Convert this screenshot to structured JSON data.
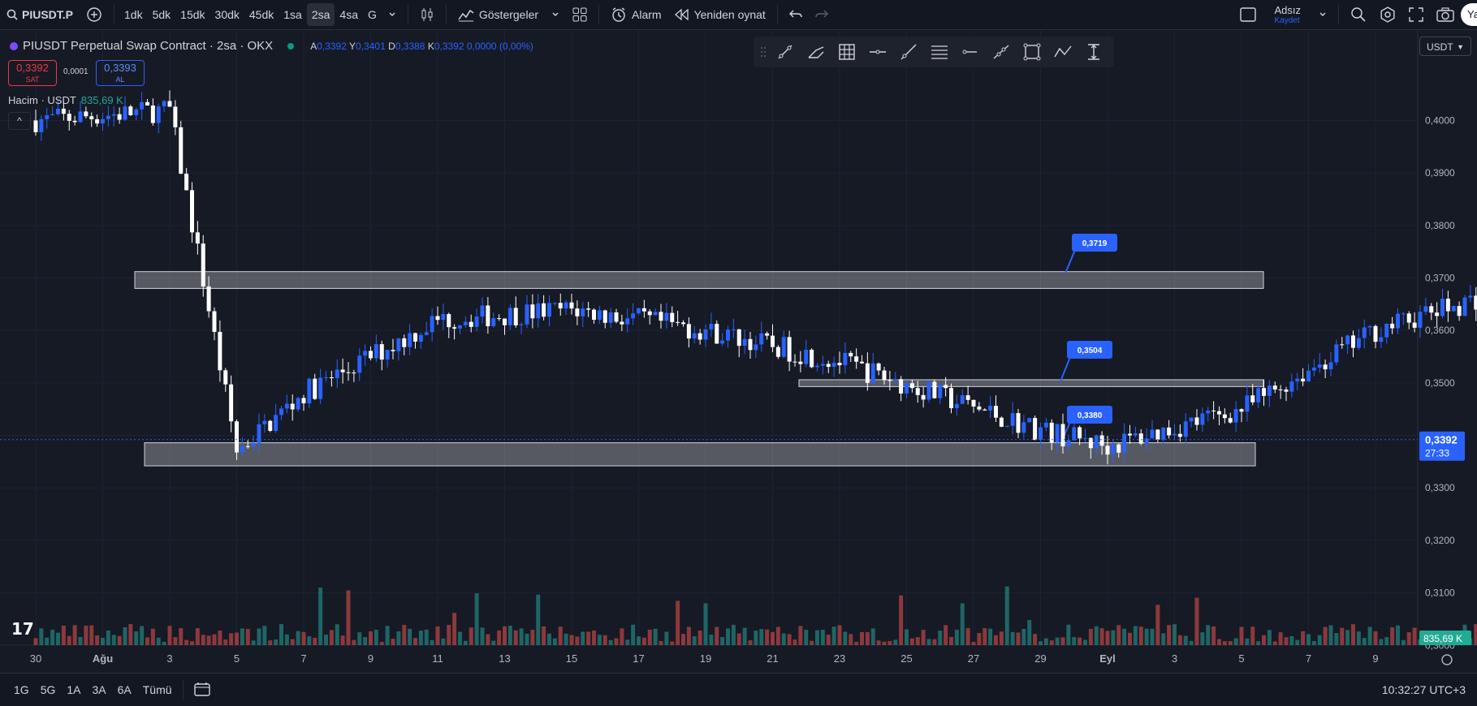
{
  "topbar": {
    "symbol": "PIUSDT.P",
    "intervals": [
      "1dk",
      "5dk",
      "15dk",
      "30dk",
      "45dk",
      "1sa",
      "2sa",
      "4sa",
      "G"
    ],
    "active_interval": "2sa",
    "indicators_label": "Göstergeler",
    "alarm_label": "Alarm",
    "replay_label": "Yeniden oynat",
    "layout_name": "Adsız",
    "save_label": "Kaydet",
    "right_cut_label": "Ya"
  },
  "legend": {
    "title": "PIUSDT Perpetual Swap Contract · 2sa · OKX",
    "o_label": "A",
    "o_value": "0,3392",
    "h_label": "Y",
    "h_value": "0,3401",
    "l_label": "D",
    "l_value": "0,3388",
    "c_label": "K",
    "c_value": "0,3392",
    "change": "0,0000 (0,00%)"
  },
  "trade": {
    "sell_price": "0,3392",
    "sell_label": "SAT",
    "spread": "0,0001",
    "buy_price": "0,3393",
    "buy_label": "AL"
  },
  "volume_legend": {
    "label": "Hacim · USDT",
    "value": "835,69 K"
  },
  "currency_select": "USDT",
  "colors": {
    "up": "#2962ff",
    "down": "#ffffff",
    "vol_up": "#26a69a",
    "vol_down": "#ef5350",
    "bg": "#161a25",
    "price_tag": "#2962ff"
  },
  "chart_data": {
    "type": "candlestick",
    "y_ticks": [
      "0,4000",
      "0,3900",
      "0,3800",
      "0,3700",
      "0,3600",
      "0,3500",
      "0,3400",
      "0,3300",
      "0,3200",
      "0,3100",
      "0,3000"
    ],
    "y_range": [
      0.2985,
      0.4115
    ],
    "x_ticks": [
      "30",
      "Ağu",
      "3",
      "5",
      "7",
      "9",
      "11",
      "13",
      "15",
      "17",
      "19",
      "21",
      "23",
      "25",
      "27",
      "29",
      "Eyl",
      "3",
      "5",
      "7",
      "9"
    ],
    "last_price": "0,3392",
    "countdown": "27:33",
    "volume_last": "835,69 K",
    "price_path": [
      [
        0,
        0.4
      ],
      [
        2,
        0.402
      ],
      [
        3,
        0.337
      ],
      [
        4,
        0.348
      ],
      [
        6,
        0.362
      ],
      [
        8,
        0.364
      ],
      [
        10,
        0.36
      ],
      [
        12,
        0.354
      ],
      [
        15,
        0.341
      ],
      [
        16,
        0.338
      ],
      [
        18,
        0.345
      ],
      [
        20,
        0.36
      ],
      [
        22,
        0.368
      ],
      [
        23,
        0.372
      ],
      [
        24,
        0.382
      ],
      [
        25,
        0.405
      ],
      [
        26,
        0.41
      ],
      [
        27,
        0.405
      ],
      [
        28,
        0.39
      ],
      [
        30,
        0.399
      ],
      [
        31,
        0.395
      ],
      [
        33,
        0.378
      ],
      [
        35,
        0.393
      ],
      [
        37,
        0.403
      ],
      [
        38,
        0.403
      ],
      [
        40,
        0.385
      ],
      [
        41,
        0.374
      ],
      [
        42,
        0.386
      ],
      [
        44,
        0.385
      ],
      [
        45,
        0.38
      ],
      [
        46,
        0.383
      ],
      [
        48,
        0.382
      ],
      [
        49,
        0.388
      ],
      [
        51,
        0.372
      ],
      [
        52,
        0.36
      ],
      [
        54,
        0.358
      ],
      [
        56,
        0.352
      ],
      [
        57,
        0.351
      ],
      [
        59,
        0.36
      ],
      [
        60,
        0.368
      ],
      [
        61,
        0.363
      ],
      [
        62,
        0.358
      ],
      [
        63,
        0.369
      ],
      [
        64,
        0.367
      ],
      [
        65,
        0.361
      ],
      [
        66,
        0.36
      ],
      [
        67,
        0.36
      ],
      [
        68,
        0.356
      ],
      [
        69,
        0.35
      ],
      [
        70,
        0.341
      ],
      [
        71,
        0.337
      ],
      [
        72,
        0.341
      ],
      [
        73,
        0.345
      ],
      [
        73.4,
        0.34
      ],
      [
        74,
        0.339
      ]
    ],
    "zones": [
      {
        "top": 0.3712,
        "bottom": 0.368,
        "label": "0,3719"
      },
      {
        "top": 0.3506,
        "bottom": 0.3493,
        "label": "0,3504"
      },
      {
        "top": 0.3386,
        "bottom": 0.3342,
        "label": "0,3380"
      }
    ]
  },
  "bottombar": {
    "ranges": [
      "1G",
      "5G",
      "1A",
      "3A",
      "6A",
      "Tümü"
    ],
    "clock": "10:32:27 UTC+3"
  }
}
